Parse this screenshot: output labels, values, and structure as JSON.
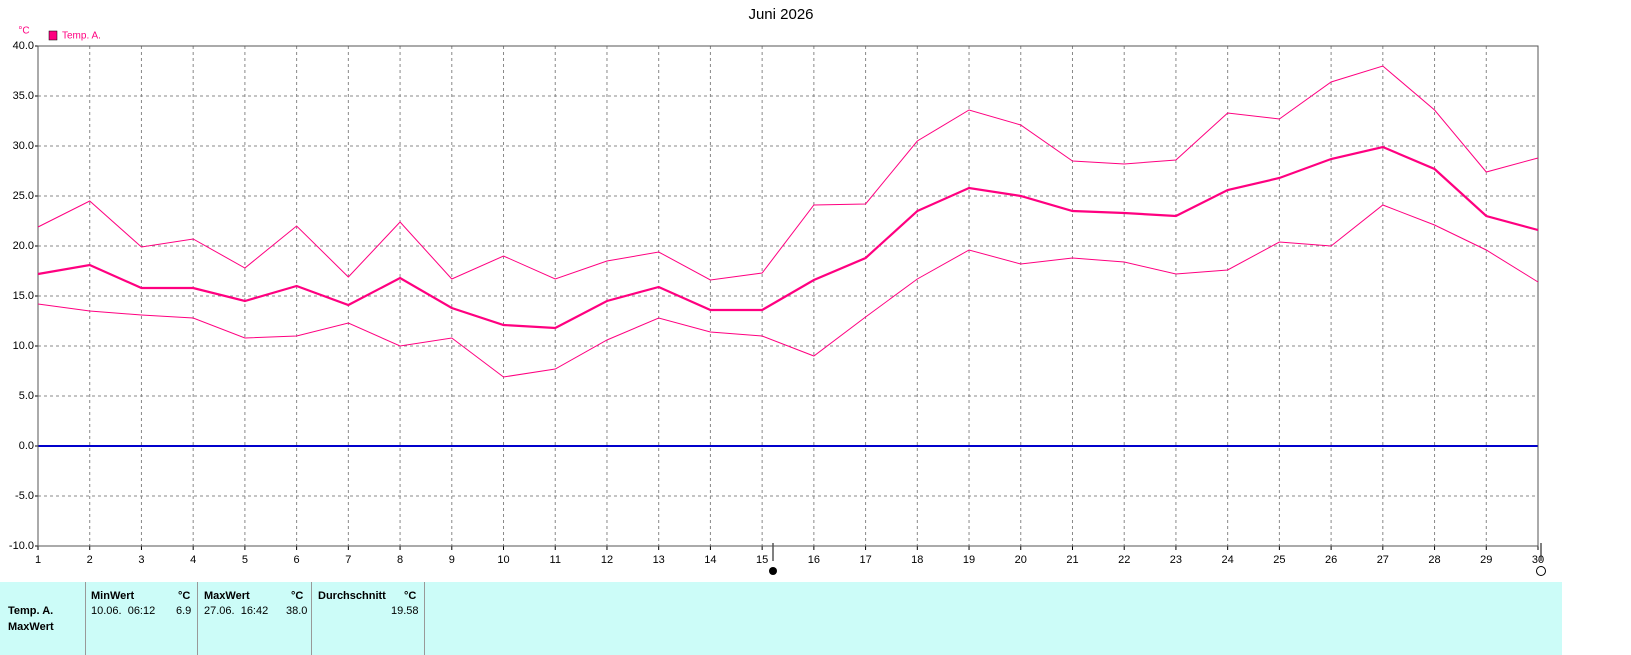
{
  "chart_data": {
    "type": "line",
    "title": "Juni 2026",
    "unit_label": "°C",
    "x": [
      1,
      2,
      3,
      4,
      5,
      6,
      7,
      8,
      9,
      10,
      11,
      12,
      13,
      14,
      15,
      16,
      17,
      18,
      19,
      20,
      21,
      22,
      23,
      24,
      25,
      26,
      27,
      28,
      29,
      30
    ],
    "xlim": [
      1,
      30
    ],
    "xticks": [
      1,
      2,
      3,
      4,
      5,
      6,
      7,
      8,
      9,
      10,
      11,
      12,
      13,
      14,
      15,
      16,
      17,
      18,
      19,
      20,
      21,
      22,
      23,
      24,
      25,
      26,
      27,
      28,
      29,
      30
    ],
    "ylim": [
      -10,
      40
    ],
    "yticks": [
      {
        "value": -10,
        "label": "-10.0"
      },
      {
        "value": -5,
        "label": "-5.0"
      },
      {
        "value": 0,
        "label": "0.0"
      },
      {
        "value": 5,
        "label": "5.0"
      },
      {
        "value": 10,
        "label": "10.0"
      },
      {
        "value": 15,
        "label": "15.0"
      },
      {
        "value": 20,
        "label": "20.0"
      },
      {
        "value": 25,
        "label": "25.0"
      },
      {
        "value": 30,
        "label": "30.0"
      },
      {
        "value": 35,
        "label": "35.0"
      },
      {
        "value": 40,
        "label": "40.0"
      }
    ],
    "grid": true,
    "zero_line_color": "#0000cc",
    "legend": "top-left",
    "series": [
      {
        "name": "Temp. A.",
        "color": "#ff0080",
        "values": [
          17.2,
          18.1,
          15.8,
          15.8,
          14.5,
          16.0,
          14.1,
          16.8,
          13.8,
          12.1,
          11.8,
          14.5,
          15.9,
          13.6,
          13.6,
          16.6,
          18.8,
          23.5,
          25.8,
          25.0,
          23.5,
          23.3,
          23.0,
          25.6,
          26.8,
          28.7,
          29.9,
          27.7,
          23.0,
          21.6
        ],
        "max": [
          21.9,
          24.5,
          19.9,
          20.7,
          17.8,
          22.0,
          16.9,
          22.4,
          16.7,
          19.0,
          16.7,
          18.5,
          19.4,
          16.6,
          17.3,
          24.1,
          24.2,
          30.5,
          33.6,
          32.1,
          28.5,
          28.2,
          28.6,
          33.3,
          32.7,
          36.4,
          38.0,
          33.6,
          27.4,
          28.8
        ],
        "min": [
          14.2,
          13.5,
          13.1,
          12.8,
          10.8,
          11.0,
          12.3,
          10.0,
          10.8,
          6.9,
          7.7,
          10.6,
          12.8,
          11.4,
          11.0,
          9.0,
          12.9,
          16.7,
          19.6,
          18.2,
          18.8,
          18.4,
          17.2,
          17.6,
          20.4,
          20.0,
          24.1,
          22.1,
          19.6,
          16.4
        ]
      }
    ]
  },
  "stats": {
    "headers": [
      "MinWert",
      "°C",
      "MaxWert",
      "°C",
      "Durchschnitt",
      "°C"
    ],
    "rows": [
      [
        "Temp. A.",
        "10.06.  06:12",
        "6.9",
        "27.06.  16:42",
        "38.0",
        "19.58"
      ]
    ],
    "next_label": "MaxWert"
  }
}
